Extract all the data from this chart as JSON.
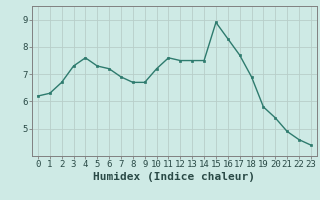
{
  "x": [
    0,
    1,
    2,
    3,
    4,
    5,
    6,
    7,
    8,
    9,
    10,
    11,
    12,
    13,
    14,
    15,
    16,
    17,
    18,
    19,
    20,
    21,
    22,
    23
  ],
  "y": [
    6.2,
    6.3,
    6.7,
    7.3,
    7.6,
    7.3,
    7.2,
    6.9,
    6.7,
    6.7,
    7.2,
    7.6,
    7.5,
    7.5,
    7.5,
    8.9,
    8.3,
    7.7,
    6.9,
    5.8,
    5.4,
    4.9,
    4.6,
    4.4
  ],
  "xlabel": "Humidex (Indice chaleur)",
  "line_color": "#2e7b6e",
  "marker_color": "#2e7b6e",
  "bg_color": "#ceeae5",
  "grid_color": "#b8cec9",
  "axis_color": "#808080",
  "ylim": [
    4.0,
    9.5
  ],
  "xlim": [
    -0.5,
    23.5
  ],
  "yticks": [
    5,
    6,
    7,
    8,
    9
  ],
  "xticks": [
    0,
    1,
    2,
    3,
    4,
    5,
    6,
    7,
    8,
    9,
    10,
    11,
    12,
    13,
    14,
    15,
    16,
    17,
    18,
    19,
    20,
    21,
    22,
    23
  ],
  "tick_fontsize": 6.5,
  "xlabel_fontsize": 8,
  "label_color": "#2a4a46"
}
